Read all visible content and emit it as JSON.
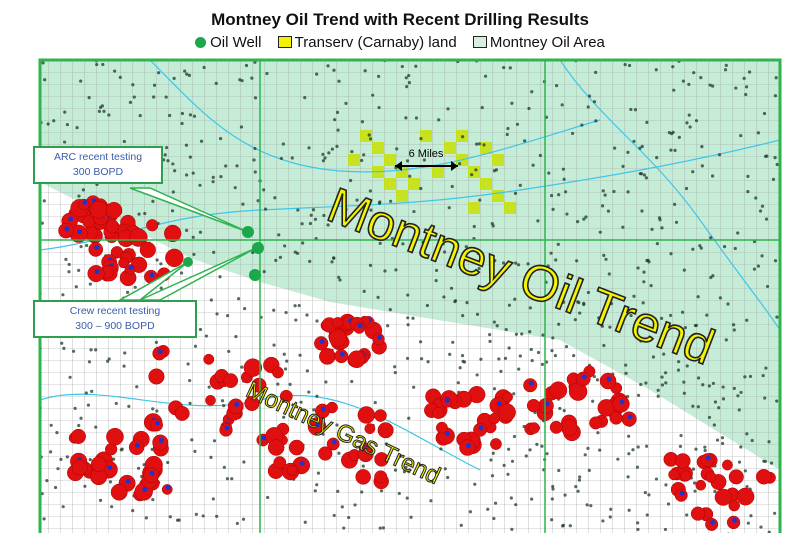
{
  "title": "Montney Oil Trend with Recent Drilling Results",
  "legend": [
    {
      "label": "Oil Well",
      "icon": "green-dot",
      "color": "#1aa84a"
    },
    {
      "label": "Transerv (Carnaby) land",
      "icon": "yellow-square",
      "color": "#f2f200"
    },
    {
      "label": "Montney Oil Area",
      "icon": "light-green-square",
      "color": "#d3f0e1"
    }
  ],
  "labels": {
    "oil_trend": "Montney Oil Trend",
    "gas_trend": "Montney Gas Trend",
    "scale": "6 Miles"
  },
  "callouts": [
    {
      "line1": "ARC recent testing",
      "line2": "300 BOPD"
    },
    {
      "line1": "Crew recent testing",
      "line2": "300 – 900 BOPD"
    }
  ],
  "colors": {
    "oil_area": "#c4ecd6",
    "border": "#2eb34f",
    "gas_well": "#e01010",
    "land": "#c8e000",
    "river": "#3fc6e8"
  }
}
